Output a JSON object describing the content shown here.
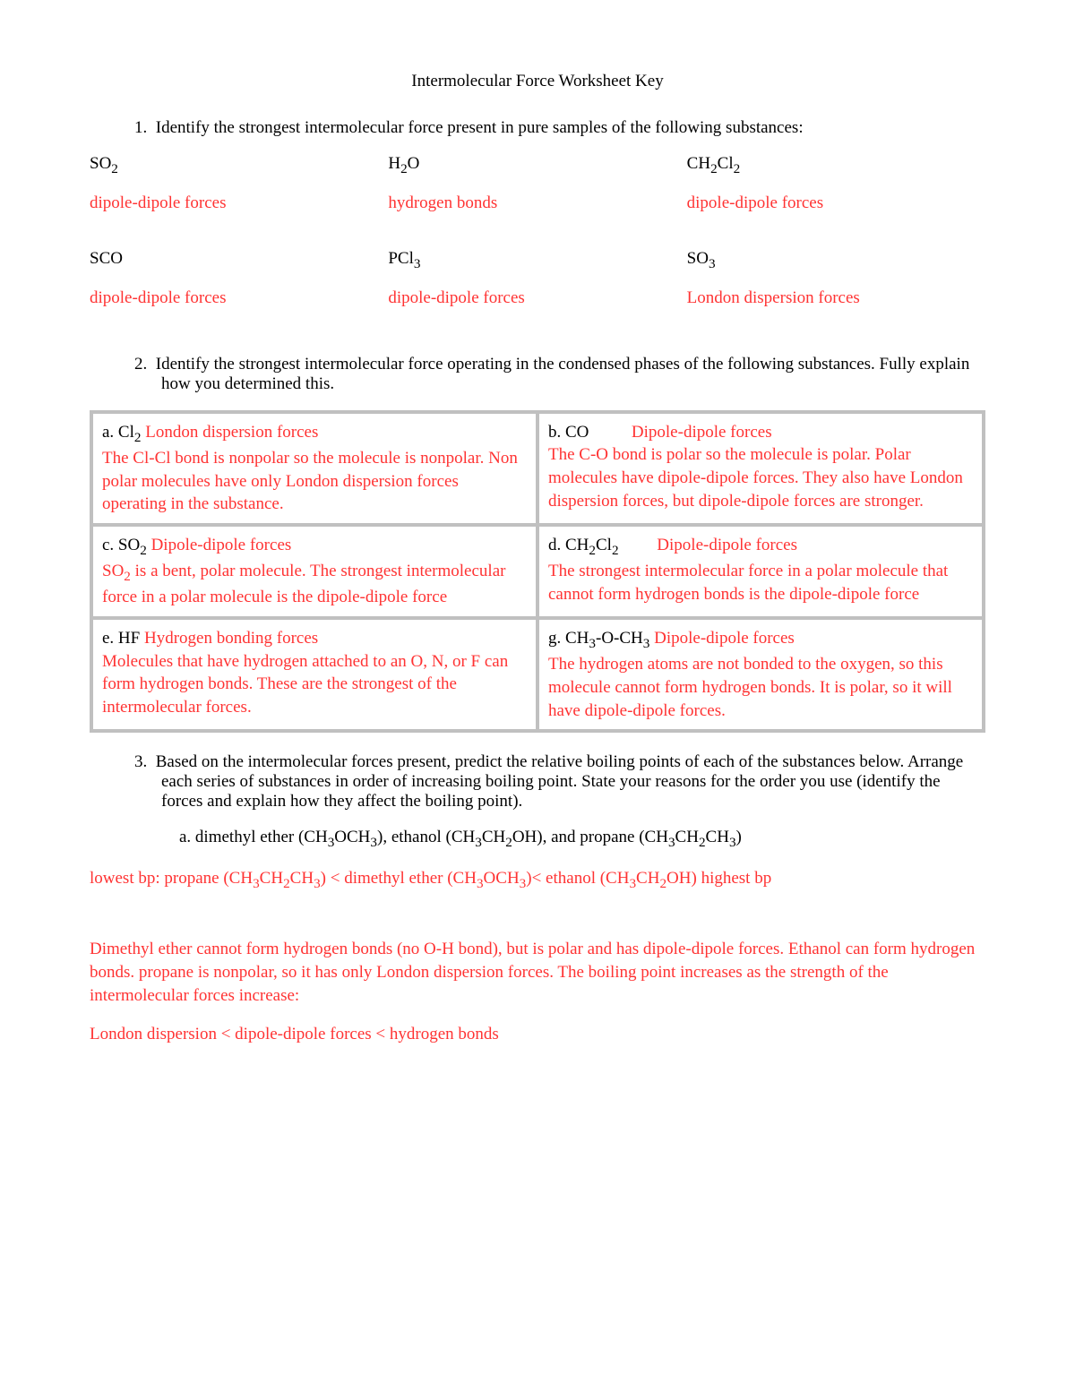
{
  "colors": {
    "text": "#000000",
    "answer": "#ff3333",
    "table_border": "#c0c0c0",
    "background": "#ffffff"
  },
  "typography": {
    "font_family": "Times New Roman",
    "font_size_pt": 14
  },
  "title": "Intermolecular Force Worksheet Key",
  "q1": {
    "number": "1.",
    "text": "Identify the strongest intermolecular force present in pure samples of the following substances:",
    "row1": {
      "c1_formula": "SO₂",
      "c1_answer": "dipole-dipole forces",
      "c2_formula": "H₂O",
      "c2_answer": "hydrogen bonds",
      "c3_formula": "CH₂Cl₂",
      "c3_answer": "dipole-dipole forces"
    },
    "row2": {
      "c1_formula": "SCO",
      "c1_answer": "dipole-dipole forces",
      "c2_formula": "PCl₃",
      "c2_answer": "dipole-dipole forces",
      "c3_formula": "SO₃",
      "c3_answer": "London dispersion forces"
    }
  },
  "q2": {
    "number": "2.",
    "text": "Identify the strongest intermolecular force operating in the condensed phases of the following substances. Fully explain how you determined this.",
    "cells": {
      "a_label": "a. Cl₂ ",
      "a_force": "London dispersion forces",
      "a_explain": "The Cl-Cl bond is nonpolar so the molecule is nonpolar. Non polar molecules have only London dispersion forces operating in the substance.",
      "b_label": "b. CO",
      "b_force": "Dipole-dipole forces",
      "b_explain": "The C-O bond is polar so the molecule is polar. Polar molecules have dipole-dipole forces. They also have London dispersion forces, but dipole-dipole forces are stronger.",
      "c_label": "c. SO₂ ",
      "c_force": "Dipole-dipole forces",
      "c_explain": "SO₂ is a bent, polar molecule. The strongest intermolecular force in a polar molecule is the dipole-dipole force",
      "d_label": "d. CH₂Cl₂",
      "d_force": "Dipole-dipole forces",
      "d_explain": "The strongest intermolecular force in a polar molecule that cannot form hydrogen bonds is the dipole-dipole force",
      "e_label": "e. HF ",
      "e_force": "Hydrogen bonding forces",
      "e_explain": "Molecules that have hydrogen attached to an O, N, or F can form hydrogen bonds. These are the strongest of the intermolecular forces.",
      "g_label": "g. CH₃-O-CH₃ ",
      "g_force": "Dipole-dipole forces",
      "g_explain": "The hydrogen atoms are not bonded to the oxygen, so this molecule cannot form hydrogen bonds. It is polar, so it will have dipole-dipole forces."
    }
  },
  "q3": {
    "number": "3.",
    "text": "Based on the intermolecular forces present, predict the relative boiling points of each of the substances below. Arrange each series of substances in order of increasing boiling point. State your reasons for the order you use (identify the forces and explain how they affect the boiling point).",
    "a_label": "a. dimethyl ether (CH₃OCH₃), ethanol (CH₃CH₂OH), and propane (CH₃CH₂CH₃)",
    "a_order": "lowest bp: propane (CH₃CH₂CH₃) < dimethyl ether (CH₃OCH₃)< ethanol (CH₃CH₂OH) highest bp",
    "a_explain": "Dimethyl ether cannot form hydrogen bonds (no O-H bond), but is polar and has dipole-dipole forces. Ethanol can form hydrogen bonds. propane is nonpolar, so it has only London dispersion forces. The boiling point increases as the strength of the intermolecular forces increase:",
    "a_rank": "London dispersion < dipole-dipole forces < hydrogen bonds"
  }
}
